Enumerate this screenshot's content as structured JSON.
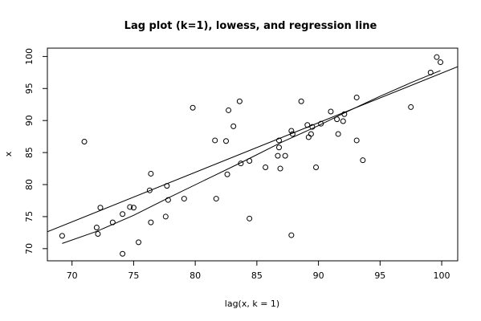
{
  "chart_data": {
    "type": "scatter",
    "title": "Lag plot (k=1), lowess, and regression line",
    "xlabel": "lag(x, k = 1)",
    "ylabel": "x",
    "xlim": [
      68,
      101.3
    ],
    "ylim": [
      68.1,
      101.3
    ],
    "xticks": [
      70,
      75,
      80,
      85,
      90,
      95,
      100
    ],
    "yticks": [
      70,
      75,
      80,
      85,
      90,
      95,
      100
    ],
    "grid": false,
    "points": [
      [
        69.2,
        72.0
      ],
      [
        71.0,
        86.7
      ],
      [
        72.0,
        73.3
      ],
      [
        72.1,
        72.3
      ],
      [
        72.3,
        76.4
      ],
      [
        73.3,
        74.1
      ],
      [
        74.1,
        75.4
      ],
      [
        74.1,
        69.2
      ],
      [
        74.7,
        76.5
      ],
      [
        75.0,
        76.4
      ],
      [
        75.4,
        71.0
      ],
      [
        76.3,
        79.1
      ],
      [
        76.4,
        74.1
      ],
      [
        76.4,
        81.7
      ],
      [
        77.6,
        75.0
      ],
      [
        77.7,
        79.8
      ],
      [
        77.8,
        77.6
      ],
      [
        79.1,
        77.8
      ],
      [
        79.8,
        92.0
      ],
      [
        81.6,
        86.9
      ],
      [
        81.7,
        77.8
      ],
      [
        82.5,
        86.8
      ],
      [
        82.6,
        81.6
      ],
      [
        82.7,
        91.6
      ],
      [
        83.1,
        89.1
      ],
      [
        83.6,
        93.0
      ],
      [
        83.7,
        83.3
      ],
      [
        84.4,
        83.7
      ],
      [
        84.4,
        74.7
      ],
      [
        85.7,
        82.7
      ],
      [
        86.7,
        84.5
      ],
      [
        86.8,
        86.9
      ],
      [
        86.8,
        85.8
      ],
      [
        86.9,
        82.5
      ],
      [
        87.3,
        84.5
      ],
      [
        87.8,
        88.4
      ],
      [
        87.9,
        87.9
      ],
      [
        87.8,
        72.1
      ],
      [
        88.6,
        93.0
      ],
      [
        89.1,
        89.3
      ],
      [
        89.2,
        87.4
      ],
      [
        89.5,
        89.0
      ],
      [
        89.4,
        87.9
      ],
      [
        89.8,
        82.7
      ],
      [
        90.2,
        89.5
      ],
      [
        91.0,
        91.4
      ],
      [
        91.5,
        90.2
      ],
      [
        91.6,
        87.9
      ],
      [
        92.0,
        89.9
      ],
      [
        92.1,
        91.0
      ],
      [
        93.1,
        93.6
      ],
      [
        93.1,
        86.9
      ],
      [
        93.6,
        83.8
      ],
      [
        97.5,
        92.1
      ],
      [
        99.1,
        97.5
      ],
      [
        99.6,
        99.9
      ],
      [
        99.9,
        99.1
      ]
    ],
    "regression_line": {
      "intercept": 20.0,
      "slope": 0.774
    },
    "lowess_line": [
      [
        69.2,
        70.8
      ],
      [
        72.0,
        72.7
      ],
      [
        75.0,
        75.2
      ],
      [
        78.0,
        78.1
      ],
      [
        81.0,
        80.9
      ],
      [
        84.0,
        83.7
      ],
      [
        87.0,
        86.6
      ],
      [
        90.0,
        89.2
      ],
      [
        92.0,
        91.1
      ],
      [
        95.0,
        93.8
      ],
      [
        97.5,
        95.9
      ],
      [
        99.9,
        97.8
      ]
    ]
  }
}
